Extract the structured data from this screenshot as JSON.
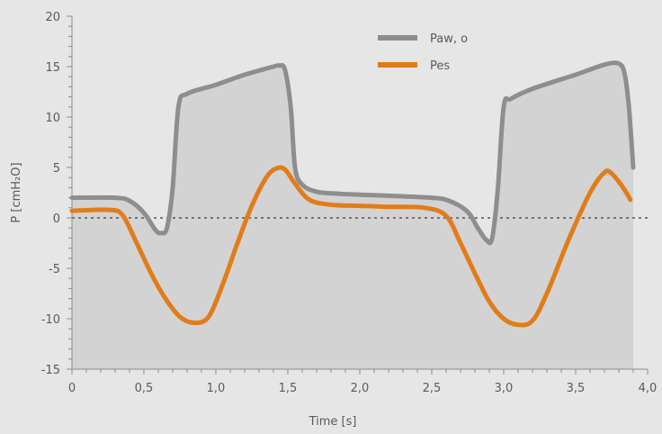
{
  "chart_data": {
    "type": "line",
    "title": "",
    "xlabel": "Time [s]",
    "ylabel": "P [cmH₂O]",
    "xlim": [
      0,
      4.0
    ],
    "ylim": [
      -15,
      20
    ],
    "x_ticks": [
      0,
      0.5,
      1.0,
      1.5,
      2.0,
      2.5,
      3.0,
      3.5,
      4.0
    ],
    "x_tick_labels": [
      "0",
      "0,5",
      "1,0",
      "1,5",
      "2,0",
      "2,5",
      "3,0",
      "3,5",
      "4,0"
    ],
    "y_ticks": [
      -15,
      -10,
      -5,
      0,
      5,
      10,
      15,
      20
    ],
    "y_tick_labels": [
      "-15",
      "-10",
      "-5",
      "0",
      "5",
      "10",
      "15",
      "20"
    ],
    "zero_line": {
      "y": 0,
      "style": "dotted"
    },
    "legend": {
      "placement": "top-right"
    },
    "colors": {
      "background": "#e6e6e6",
      "plot_fill": "#d3d3d3",
      "axis": "#8c8c8c",
      "zero_line": "#555555"
    },
    "series": [
      {
        "name": "Paw, o",
        "color": "#8e8e8e",
        "filled": true,
        "x": [
          0,
          0.3,
          0.4,
          0.5,
          0.58,
          0.62,
          0.66,
          0.7,
          0.74,
          0.8,
          1.0,
          1.2,
          1.4,
          1.44,
          1.48,
          1.52,
          1.55,
          1.6,
          1.7,
          1.85,
          2.0,
          2.2,
          2.5,
          2.62,
          2.75,
          2.82,
          2.88,
          2.92,
          2.96,
          3.0,
          3.05,
          3.2,
          3.5,
          3.7,
          3.8,
          3.84,
          3.87,
          3.9
        ],
        "y": [
          2,
          2,
          1.7,
          0.5,
          -1.2,
          -1.5,
          -1,
          3,
          11,
          12.3,
          13.2,
          14.2,
          15,
          15.1,
          14.7,
          11,
          5,
          3.3,
          2.6,
          2.4,
          2.3,
          2.2,
          2,
          1.7,
          0.6,
          -1,
          -2.2,
          -2,
          3,
          11,
          11.8,
          12.8,
          14.2,
          15.2,
          15.3,
          14.3,
          11,
          5
        ]
      },
      {
        "name": "Pes",
        "color": "#e07d1a",
        "filled": false,
        "x": [
          0,
          0.25,
          0.35,
          0.45,
          0.55,
          0.65,
          0.75,
          0.85,
          0.95,
          1.05,
          1.15,
          1.25,
          1.35,
          1.42,
          1.48,
          1.55,
          1.65,
          1.8,
          2.0,
          2.2,
          2.45,
          2.6,
          2.7,
          2.8,
          2.9,
          3.0,
          3.1,
          3.2,
          3.3,
          3.45,
          3.6,
          3.7,
          3.75,
          3.83,
          3.88
        ],
        "y": [
          0.7,
          0.8,
          0.3,
          -2.5,
          -5.5,
          -8,
          -9.8,
          -10.4,
          -9.8,
          -6.5,
          -2.5,
          1.2,
          4,
          4.9,
          4.8,
          3.4,
          1.8,
          1.3,
          1.2,
          1.1,
          1,
          0.2,
          -2.5,
          -5.5,
          -8.3,
          -10,
          -10.6,
          -10.2,
          -7.5,
          -2.2,
          2.5,
          4.5,
          4.4,
          3,
          1.8
        ]
      }
    ]
  }
}
